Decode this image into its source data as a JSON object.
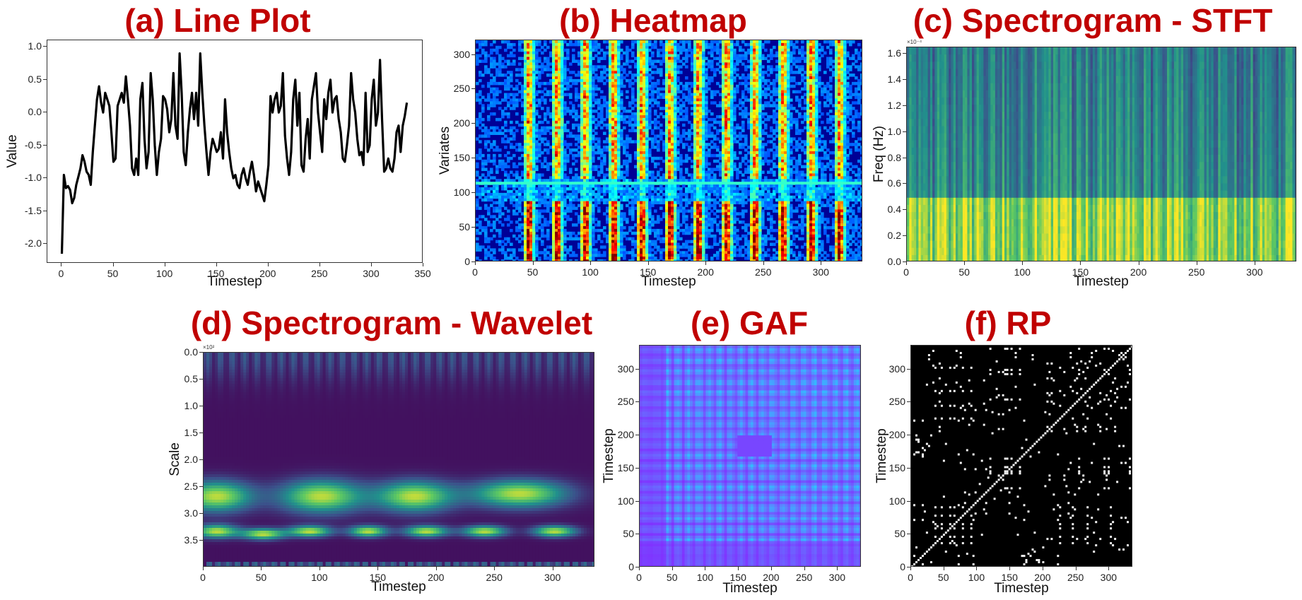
{
  "titles": {
    "a": "(a) Line Plot",
    "b": "(b) Heatmap",
    "c": "(c) Spectrogram - STFT",
    "d": "(d) Spectrogram - Wavelet",
    "e": "(e) GAF",
    "f": "(f) RP"
  },
  "colors": {
    "title": "#c00000",
    "line": "#000000"
  },
  "chart_data": [
    {
      "id": "a",
      "type": "line",
      "title": "(a) Line Plot",
      "xlabel": "Timestep",
      "ylabel": "Value",
      "xlim": [
        -14,
        350
      ],
      "ylim": [
        -2.3,
        1.1
      ],
      "xticks": [
        "0",
        "50",
        "100",
        "150",
        "200",
        "250",
        "300",
        "350"
      ],
      "yticks": [
        "1.0",
        "0.5",
        "0.0",
        "-0.5",
        "-1.0",
        "-1.5",
        "-2.0"
      ],
      "series": [
        {
          "x": [
            0,
            2,
            4,
            6,
            8,
            10,
            12,
            14,
            16,
            18,
            20,
            22,
            24,
            26,
            28,
            30,
            32,
            34,
            36,
            38,
            40,
            42,
            44,
            46,
            48,
            50,
            52,
            54,
            56,
            58,
            60,
            62,
            64,
            66,
            68,
            70,
            72,
            74,
            76,
            78,
            80,
            82,
            84,
            86,
            88,
            90,
            92,
            94,
            96,
            98,
            100,
            102,
            104,
            106,
            108,
            110,
            112,
            114,
            116,
            118,
            120,
            122,
            124,
            126,
            128,
            130,
            132,
            134,
            136,
            138,
            140,
            142,
            144,
            146,
            148,
            150,
            152,
            154,
            156,
            158,
            160,
            162,
            164,
            166,
            168,
            170,
            172,
            174,
            176,
            178,
            180,
            182,
            184,
            186,
            188,
            190,
            192,
            194,
            196,
            198,
            200,
            202,
            204,
            206,
            208,
            210,
            212,
            214,
            216,
            218,
            220,
            222,
            224,
            226,
            228,
            230,
            232,
            234,
            236,
            238,
            240,
            242,
            244,
            246,
            248,
            250,
            252,
            254,
            256,
            258,
            260,
            262,
            264,
            266,
            268,
            270,
            272,
            274,
            276,
            278,
            280,
            282,
            284,
            286,
            288,
            290,
            292,
            294,
            296,
            298,
            300,
            302,
            304,
            306,
            308,
            310,
            312,
            314,
            316,
            318,
            320,
            322,
            324,
            326,
            328,
            330,
            332,
            334
          ],
          "y": [
            -2.15,
            -0.95,
            -1.15,
            -1.12,
            -1.18,
            -1.38,
            -1.3,
            -1.1,
            -0.98,
            -0.85,
            -0.65,
            -0.75,
            -0.9,
            -0.95,
            -1.1,
            -0.6,
            -0.2,
            0.2,
            0.4,
            0.15,
            0.0,
            0.3,
            0.2,
            0.1,
            -0.3,
            -0.75,
            -0.7,
            0.1,
            0.2,
            0.3,
            0.15,
            0.55,
            0.2,
            -0.2,
            -0.85,
            -0.95,
            -0.7,
            -0.95,
            0.2,
            0.45,
            -0.4,
            -0.85,
            -0.6,
            0.6,
            0.2,
            -0.5,
            -0.95,
            -0.6,
            -0.4,
            0.25,
            0.2,
            0.05,
            -0.3,
            -0.1,
            0.6,
            -0.2,
            -0.4,
            0.9,
            0.3,
            -0.6,
            -0.8,
            -0.3,
            0.05,
            0.3,
            -0.1,
            0.3,
            -0.2,
            0.9,
            0.3,
            -0.2,
            -0.6,
            -0.95,
            -0.6,
            -0.4,
            -0.5,
            -0.6,
            -0.55,
            -0.3,
            -0.7,
            0.2,
            -0.3,
            -0.6,
            -0.85,
            -1.0,
            -0.95,
            -1.1,
            -1.15,
            -0.95,
            -0.85,
            -1.0,
            -1.1,
            -0.9,
            -0.75,
            -0.95,
            -1.2,
            -1.05,
            -1.15,
            -1.25,
            -1.35,
            -1.1,
            -0.8,
            0.25,
            0.0,
            0.2,
            0.3,
            0.0,
            0.1,
            0.6,
            -0.35,
            -0.7,
            -0.95,
            -0.6,
            0.2,
            0.5,
            -0.2,
            0.3,
            -0.8,
            -0.9,
            -0.4,
            -0.1,
            -0.7,
            0.2,
            0.4,
            0.6,
            0.0,
            -0.3,
            -0.6,
            0.2,
            -0.1,
            0.3,
            0.5,
            0.0,
            0.2,
            0.25,
            -0.1,
            -0.3,
            -0.7,
            -0.75,
            -0.5,
            -0.2,
            0.6,
            0.2,
            0.0,
            -0.4,
            -0.65,
            -0.6,
            -0.8,
            0.3,
            -0.6,
            -0.5,
            0.2,
            0.5,
            -0.2,
            0.0,
            0.8,
            -0.1,
            -0.9,
            -0.85,
            -0.7,
            -0.85,
            -0.9,
            -0.7,
            -0.3,
            -0.2,
            -0.6,
            -0.2,
            -0.05,
            0.15
          ]
        }
      ]
    },
    {
      "id": "b",
      "type": "heatmap",
      "title": "(b) Heatmap",
      "xlabel": "Timestep",
      "ylabel": "Variates",
      "xlim": [
        0,
        336
      ],
      "ylim": [
        0,
        321
      ],
      "xticks": [
        "0",
        "50",
        "100",
        "150",
        "200",
        "250",
        "300"
      ],
      "yticks": [
        "300",
        "250",
        "200",
        "150",
        "100",
        "50",
        "0"
      ]
    },
    {
      "id": "c",
      "type": "heatmap",
      "title": "(c) Spectrogram - STFT",
      "xlabel": "Timestep",
      "ylabel": "Freq (Hz)",
      "xlim": [
        0,
        336
      ],
      "ylim": [
        0,
        1.65
      ],
      "offset_text": "×10⁻⁴",
      "xticks": [
        "0",
        "50",
        "100",
        "150",
        "200",
        "250",
        "300"
      ],
      "yticks": [
        "1.6",
        "1.4",
        "1.2",
        "1.0",
        "0.8",
        "0.6",
        "0.4",
        "0.2",
        "0.0"
      ]
    },
    {
      "id": "d",
      "type": "heatmap",
      "title": "(d) Spectrogram - Wavelet",
      "xlabel": "Timestep",
      "ylabel": "Scale",
      "xlim": [
        0,
        336
      ],
      "ylim": [
        4.0,
        0.0
      ],
      "offset_text": "×10²",
      "xticks": [
        "0",
        "50",
        "100",
        "150",
        "200",
        "250",
        "300"
      ],
      "yticks": [
        "0.0",
        "0.5",
        "1.0",
        "1.5",
        "2.0",
        "2.5",
        "3.0",
        "3.5"
      ]
    },
    {
      "id": "e",
      "type": "heatmap",
      "title": "(e) GAF",
      "xlabel": "Timestep",
      "ylabel": "Timestep",
      "xlim": [
        0,
        336
      ],
      "ylim": [
        0,
        336
      ],
      "xticks": [
        "0",
        "50",
        "100",
        "150",
        "200",
        "250",
        "300"
      ],
      "yticks": [
        "300",
        "250",
        "200",
        "150",
        "100",
        "50",
        "0"
      ]
    },
    {
      "id": "f",
      "type": "heatmap",
      "title": "(f) RP",
      "xlabel": "Timestep",
      "ylabel": "Timestep",
      "xlim": [
        0,
        336
      ],
      "ylim": [
        0,
        336
      ],
      "xticks": [
        "0",
        "50",
        "100",
        "150",
        "200",
        "250",
        "300"
      ],
      "yticks": [
        "300",
        "250",
        "200",
        "150",
        "100",
        "50",
        "0"
      ]
    }
  ]
}
